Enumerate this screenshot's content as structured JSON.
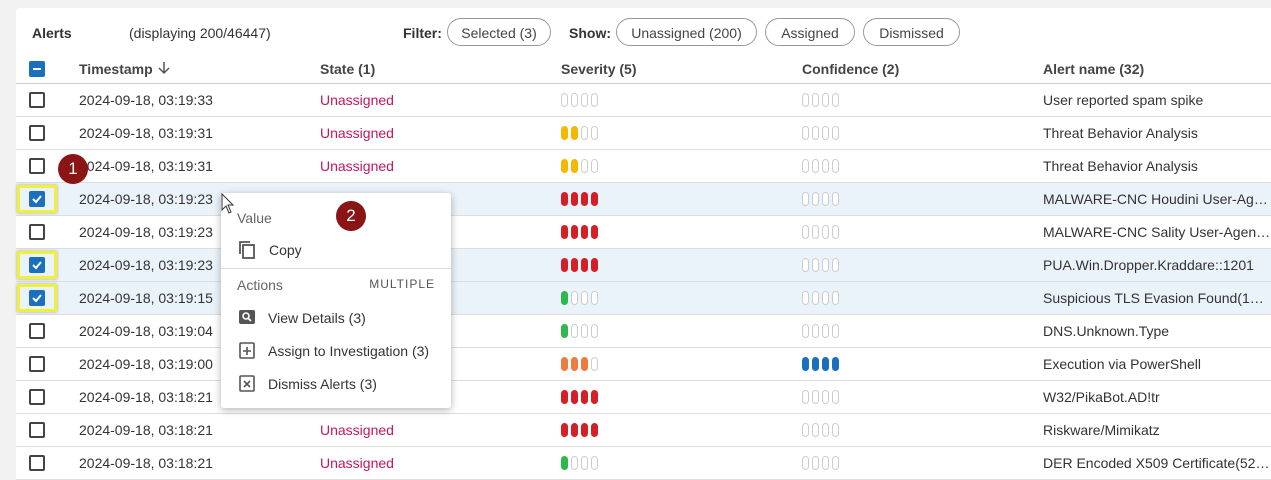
{
  "header": {
    "title": "Alerts",
    "count": "(displaying 200/46447)",
    "filter_label": "Filter:",
    "filter_button": "Selected (3)",
    "show_label": "Show:",
    "show_buttons": [
      "Unassigned (200)",
      "Assigned",
      "Dismissed"
    ]
  },
  "columns": [
    "Timestamp",
    "State (1)",
    "Severity (5)",
    "Confidence (2)",
    "Alert name (32)"
  ],
  "level_colors": {
    "severity": {
      "1": "#2db84b",
      "2": "#f5b800",
      "3": "#f07b3f",
      "4": "#d32027"
    },
    "confidence": {
      "4": "#1a6fbf"
    }
  },
  "rows": [
    {
      "timestamp": "2024-09-18, 03:19:33",
      "state": "Unassigned",
      "severity": 0,
      "confidence": 0,
      "name": "User reported spam spike",
      "selected": false
    },
    {
      "timestamp": "2024-09-18, 03:19:31",
      "state": "Unassigned",
      "severity": 2,
      "confidence": 0,
      "name": "Threat Behavior Analysis",
      "selected": false
    },
    {
      "timestamp": "2024-09-18, 03:19:31",
      "state": "Unassigned",
      "severity": 2,
      "confidence": 0,
      "name": "Threat Behavior Analysis",
      "selected": false
    },
    {
      "timestamp": "2024-09-18, 03:19:23",
      "state": null,
      "severity": 4,
      "confidence": 0,
      "name": "MALWARE-CNC Houdini User-Ag…",
      "selected": true
    },
    {
      "timestamp": "2024-09-18, 03:19:23",
      "state": null,
      "severity": 4,
      "confidence": 0,
      "name": "MALWARE-CNC Sality User-Agen…",
      "selected": false
    },
    {
      "timestamp": "2024-09-18, 03:19:23",
      "state": null,
      "severity": 4,
      "confidence": 0,
      "name": "PUA.Win.Dropper.Kraddare::1201",
      "selected": true
    },
    {
      "timestamp": "2024-09-18, 03:19:15",
      "state": null,
      "severity": 1,
      "confidence": 0,
      "name": "Suspicious TLS Evasion Found(1…",
      "selected": true
    },
    {
      "timestamp": "2024-09-18, 03:19:04",
      "state": null,
      "severity": 1,
      "confidence": 0,
      "name": "DNS.Unknown.Type",
      "selected": false
    },
    {
      "timestamp": "2024-09-18, 03:19:00",
      "state": null,
      "severity": 3,
      "confidence": 4,
      "name": "Execution via PowerShell",
      "selected": false
    },
    {
      "timestamp": "2024-09-18, 03:18:21",
      "state": null,
      "severity": 4,
      "confidence": 0,
      "name": "W32/PikaBot.AD!tr",
      "selected": false
    },
    {
      "timestamp": "2024-09-18, 03:18:21",
      "state": "Unassigned",
      "severity": 4,
      "confidence": 0,
      "name": "Riskware/Mimikatz",
      "selected": false
    },
    {
      "timestamp": "2024-09-18, 03:18:21",
      "state": "Unassigned",
      "severity": 1,
      "confidence": 0,
      "name": "DER Encoded X509 Certificate(52…",
      "selected": false
    }
  ],
  "menu": {
    "value_heading": "Value",
    "copy": "Copy",
    "actions_heading": "Actions",
    "multiple": "MULTIPLE",
    "items": [
      "View Details (3)",
      "Assign to Investigation (3)",
      "Dismiss Alerts (3)"
    ]
  },
  "callouts": [
    "1",
    "2"
  ]
}
